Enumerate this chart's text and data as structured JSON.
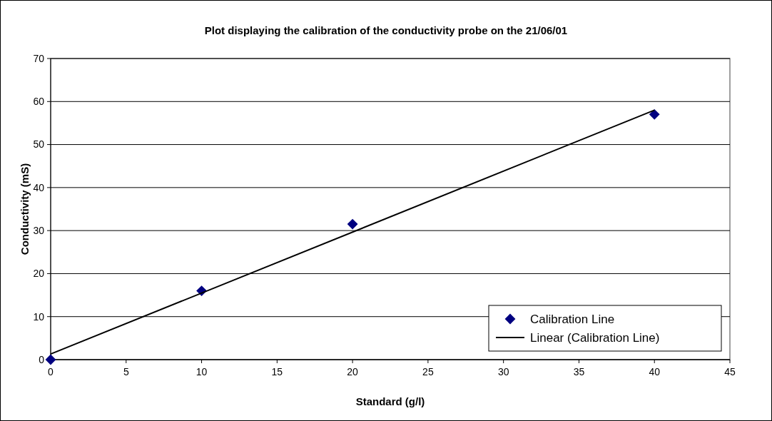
{
  "chart_data": {
    "type": "scatter",
    "title": "Plot displaying the calibration of the conductivity probe on the 21/06/01",
    "xlabel": "Standard (g/l)",
    "ylabel": "Conductivity (mS)",
    "xlim": [
      0,
      45
    ],
    "xticks": [
      0,
      5,
      10,
      15,
      20,
      25,
      30,
      35,
      40,
      45
    ],
    "ylim": [
      0,
      70
    ],
    "yticks": [
      0,
      10,
      20,
      30,
      40,
      50,
      60,
      70
    ],
    "grid": "y",
    "legend": "bottom right",
    "series": [
      {
        "name": "Calibration Line",
        "color": "#000080",
        "marker": "diamond",
        "x": [
          0,
          10,
          20,
          40
        ],
        "values": [
          0,
          16,
          31.5,
          57
        ]
      },
      {
        "type": "line",
        "name": "Linear (Calibration Line)",
        "color": "#000000",
        "marker": "none",
        "line_style": "solid",
        "x": [
          0,
          40
        ],
        "values": [
          1.3,
          58.0
        ]
      }
    ]
  }
}
